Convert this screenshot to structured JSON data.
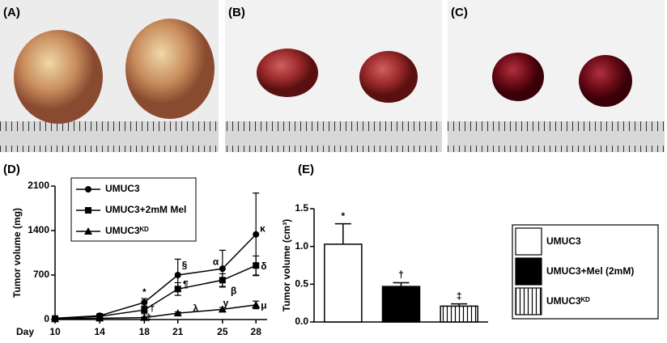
{
  "photo_panels": [
    {
      "label": "(A)"
    },
    {
      "label": "(B)"
    },
    {
      "label": "(C)"
    }
  ],
  "chart_data": [
    {
      "type": "line",
      "panel_label": "(D)",
      "x_label": "Day",
      "y_label": "Tumor volume (mg)",
      "x": [
        10,
        14,
        18,
        21,
        25,
        28
      ],
      "xlim": [
        10,
        29
      ],
      "xticks": [
        10,
        14,
        18,
        21,
        25,
        28
      ],
      "ylim": [
        0,
        2100
      ],
      "yticks": [
        0,
        700,
        1400,
        2100
      ],
      "series": [
        {
          "name": "UMUC3",
          "color": "#000000",
          "marker": "circle",
          "values": [
            20,
            60,
            270,
            700,
            800,
            1340
          ],
          "errors": [
            5,
            20,
            60,
            250,
            290,
            650
          ]
        },
        {
          "name": "UMUC3+2mM Mel",
          "color": "#000000",
          "marker": "square",
          "values": [
            15,
            50,
            150,
            480,
            620,
            850
          ],
          "errors": [
            5,
            15,
            60,
            100,
            100,
            150
          ]
        },
        {
          "name": "UMUC3ᴷᴰ",
          "color": "#000000",
          "marker": "triangle",
          "values": [
            10,
            20,
            30,
            100,
            160,
            230
          ],
          "errors": [
            3,
            5,
            10,
            20,
            30,
            60
          ]
        }
      ],
      "annotations": [
        {
          "text": "*",
          "x": 18,
          "y": 420
        },
        {
          "text": "†",
          "x": 18.7,
          "y": 170
        },
        {
          "text": "‡",
          "x": 18.4,
          "y": 20
        },
        {
          "text": "§",
          "x": 21.6,
          "y": 850
        },
        {
          "text": "¶",
          "x": 21.7,
          "y": 540
        },
        {
          "text": "α",
          "x": 24.4,
          "y": 900
        },
        {
          "text": "β",
          "x": 26,
          "y": 440
        },
        {
          "text": "γ",
          "x": 25.3,
          "y": 250
        },
        {
          "text": "λ",
          "x": 22.6,
          "y": 170
        },
        {
          "text": "κ",
          "x": 28.6,
          "y": 1420
        },
        {
          "text": "δ",
          "x": 28.7,
          "y": 830
        },
        {
          "text": "μ",
          "x": 28.7,
          "y": 210
        }
      ]
    },
    {
      "type": "bar",
      "panel_label": "(E)",
      "y_label": "Tumor volume (cm³)",
      "categories": [
        "UMUC3",
        "UMUC3+Mel (2mM)",
        "UMUC3ᴷᴰ"
      ],
      "values": [
        1.03,
        0.47,
        0.21
      ],
      "errors": [
        0.27,
        0.05,
        0.03
      ],
      "fills": [
        "white",
        "black",
        "vertical-stripes"
      ],
      "symbols": [
        "*",
        "†",
        "‡"
      ],
      "ylim": [
        0,
        1.5
      ],
      "yticks": [
        {
          "value": 0,
          "label": "0.0"
        },
        0.5,
        {
          "value": 1,
          "label": "1.0"
        },
        1.5
      ]
    }
  ]
}
